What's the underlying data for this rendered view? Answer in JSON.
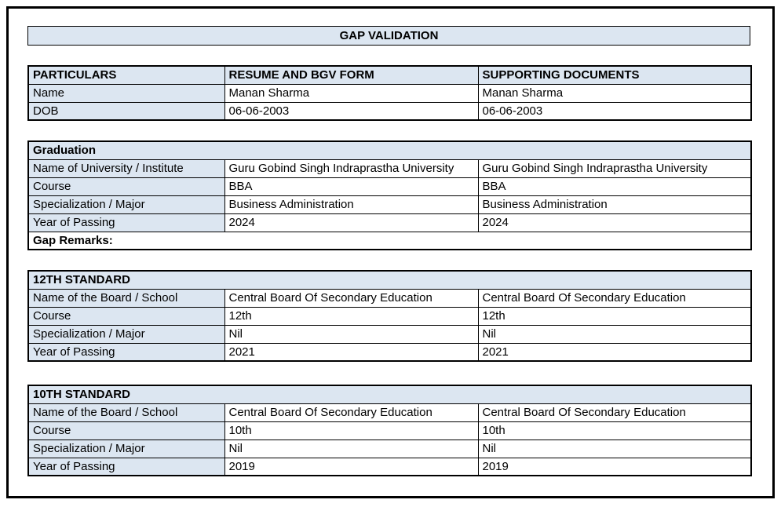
{
  "page": {
    "title": "GAP VALIDATION"
  },
  "colors": {
    "header_bg": "#dce6f1",
    "border": "#000000",
    "text": "#000000",
    "page_bg": "#ffffff"
  },
  "particulars_table": {
    "headers": [
      "PARTICULARS",
      "RESUME AND BGV FORM",
      "SUPPORTING DOCUMENTS"
    ],
    "rows": [
      {
        "label": "Name",
        "resume": "Manan Sharma",
        "supporting": "Manan Sharma"
      },
      {
        "label": "DOB",
        "resume": "06-06-2003",
        "supporting": "06-06-2003"
      }
    ]
  },
  "sections": [
    {
      "title": "Graduation",
      "rows": [
        {
          "label": "Name of University / Institute",
          "resume": "Guru Gobind Singh Indraprastha University",
          "supporting": "Guru Gobind Singh Indraprastha University"
        },
        {
          "label": "Course",
          "resume": "BBA",
          "supporting": "BBA"
        },
        {
          "label": "Specialization / Major",
          "resume": "Business Administration",
          "supporting": "Business Administration"
        },
        {
          "label": "Year of Passing",
          "resume": "2024",
          "supporting": "2024"
        }
      ],
      "footer": "Gap Remarks:"
    },
    {
      "title": "12TH STANDARD",
      "rows": [
        {
          "label": "Name of the Board / School",
          "resume": "Central Board Of Secondary Education",
          "supporting": "Central Board Of Secondary Education"
        },
        {
          "label": "Course",
          "resume": "12th",
          "supporting": "12th"
        },
        {
          "label": "Specialization / Major",
          "resume": "Nil",
          "supporting": "Nil"
        },
        {
          "label": "Year of Passing",
          "resume": "2021",
          "supporting": "2021"
        }
      ]
    },
    {
      "title": "10TH STANDARD",
      "rows": [
        {
          "label": "Name of the Board / School",
          "resume": "Central Board Of Secondary Education",
          "supporting": "Central Board Of Secondary Education"
        },
        {
          "label": "Course",
          "resume": "10th",
          "supporting": "10th"
        },
        {
          "label": "Specialization / Major",
          "resume": "Nil",
          "supporting": "Nil"
        },
        {
          "label": "Year of Passing",
          "resume": "2019",
          "supporting": "2019"
        }
      ]
    }
  ]
}
